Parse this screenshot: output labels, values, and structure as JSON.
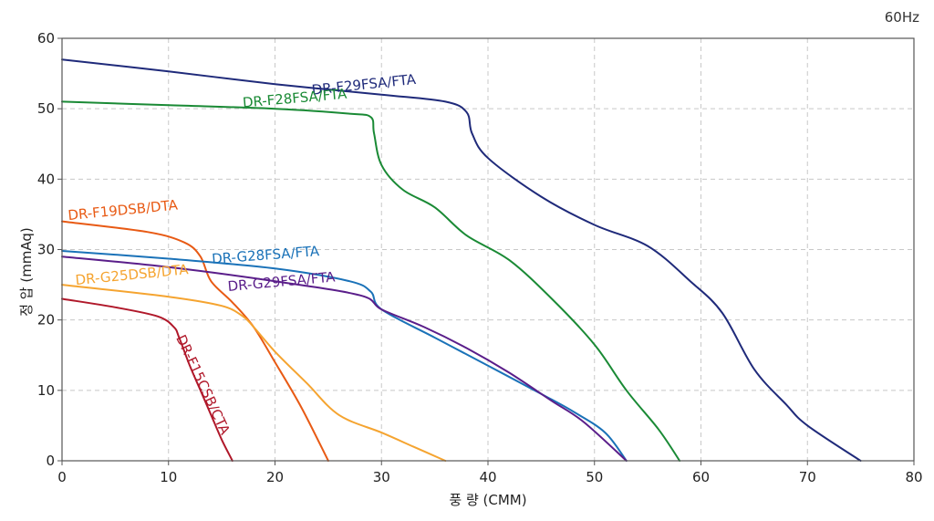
{
  "chart_data": {
    "type": "line",
    "title": "",
    "frequency_label": "60Hz",
    "xlabel": "풍 량 (CMM)",
    "ylabel": "정 압 (mmAq)",
    "xlim": [
      0,
      80
    ],
    "ylim": [
      0,
      60
    ],
    "x_ticks": [
      0,
      10,
      20,
      30,
      40,
      50,
      60,
      70,
      80
    ],
    "y_ticks": [
      0,
      10,
      20,
      30,
      40,
      50,
      60
    ],
    "grid": true,
    "series": [
      {
        "name": "DR-F29FSA/FTA",
        "color": "#1f2a7a",
        "points": [
          [
            0,
            57
          ],
          [
            10,
            55.3
          ],
          [
            20,
            53.5
          ],
          [
            30,
            52
          ],
          [
            36,
            51
          ],
          [
            38,
            49.5
          ],
          [
            38.5,
            46.5
          ],
          [
            40,
            43
          ],
          [
            45,
            37.5
          ],
          [
            50,
            33.5
          ],
          [
            55,
            30.5
          ],
          [
            59,
            25.5
          ],
          [
            62,
            21
          ],
          [
            65,
            13
          ],
          [
            68,
            8
          ],
          [
            70,
            5
          ],
          [
            75,
            0
          ]
        ]
      },
      {
        "name": "DR-F28FSA/FTA",
        "color": "#1a8a35",
        "points": [
          [
            0,
            51
          ],
          [
            10,
            50.5
          ],
          [
            20,
            50
          ],
          [
            27,
            49.3
          ],
          [
            29,
            48.8
          ],
          [
            29.3,
            46.5
          ],
          [
            30,
            42
          ],
          [
            32,
            38.5
          ],
          [
            35,
            36
          ],
          [
            38,
            32
          ],
          [
            42,
            28.5
          ],
          [
            46,
            23
          ],
          [
            50,
            16.5
          ],
          [
            53,
            10
          ],
          [
            56,
            4.5
          ],
          [
            58,
            0
          ]
        ]
      },
      {
        "name": "DR-F19DSB/DTA",
        "color": "#e85a14",
        "points": [
          [
            0,
            34
          ],
          [
            8,
            32.5
          ],
          [
            11.5,
            31
          ],
          [
            13,
            29
          ],
          [
            14,
            25.5
          ],
          [
            16,
            22.5
          ],
          [
            18,
            19
          ],
          [
            20,
            14
          ],
          [
            22.5,
            7.5
          ],
          [
            25,
            0
          ]
        ]
      },
      {
        "name": "DR-G28FSA/FTA",
        "color": "#1a72b8",
        "points": [
          [
            0,
            29.8
          ],
          [
            10,
            28.7
          ],
          [
            20,
            27.3
          ],
          [
            27,
            25.5
          ],
          [
            29,
            24
          ],
          [
            30,
            21.5
          ],
          [
            35,
            17.5
          ],
          [
            40,
            13.5
          ],
          [
            45,
            9.5
          ],
          [
            48,
            7
          ],
          [
            51,
            4
          ],
          [
            53,
            0
          ]
        ]
      },
      {
        "name": "DR-G29FSA/FTA",
        "color": "#5a1e8a",
        "points": [
          [
            0,
            29
          ],
          [
            10,
            27.5
          ],
          [
            20,
            25.5
          ],
          [
            28,
            23.5
          ],
          [
            30,
            21.5
          ],
          [
            34,
            19
          ],
          [
            38,
            16
          ],
          [
            42,
            12.5
          ],
          [
            46,
            8.5
          ],
          [
            49,
            5.5
          ],
          [
            53,
            0
          ]
        ]
      },
      {
        "name": "DR-G25DSB/DTA",
        "color": "#f5a430",
        "points": [
          [
            0,
            25
          ],
          [
            10,
            23.3
          ],
          [
            15,
            22
          ],
          [
            17,
            20.5
          ],
          [
            18,
            19
          ],
          [
            20,
            15.5
          ],
          [
            23,
            11
          ],
          [
            26,
            6.5
          ],
          [
            30,
            4
          ],
          [
            33,
            2
          ],
          [
            36,
            0
          ]
        ]
      },
      {
        "name": "DR-F15CSB/CTA",
        "color": "#b0182a",
        "points": [
          [
            0,
            23
          ],
          [
            5,
            21.8
          ],
          [
            9,
            20.5
          ],
          [
            10.5,
            19
          ],
          [
            11,
            17.5
          ],
          [
            12,
            13.5
          ],
          [
            13,
            10
          ],
          [
            14,
            6.5
          ],
          [
            15,
            3
          ],
          [
            16,
            0
          ]
        ]
      }
    ]
  }
}
